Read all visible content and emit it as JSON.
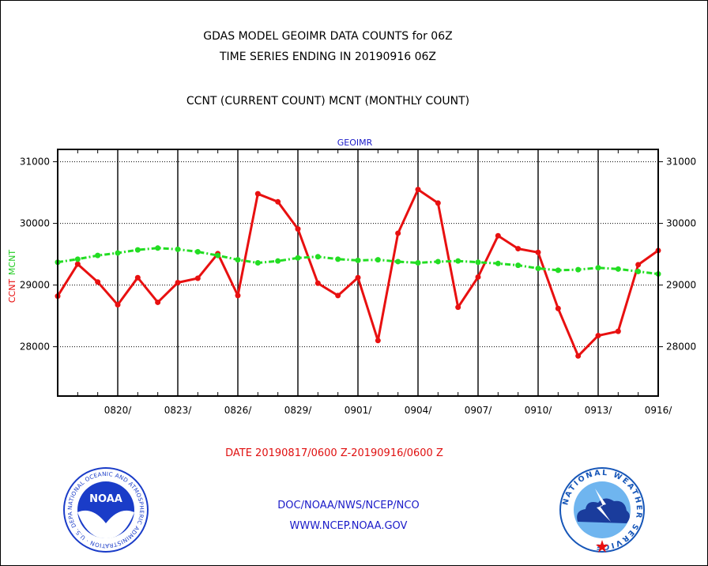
{
  "header": {
    "line1": "GDAS MODEL GEOIMR DATA COUNTS for 06Z",
    "line2": "TIME SERIES ENDING IN 20190916 06Z",
    "line3": "CCNT (CURRENT COUNT) MCNT (MONTHLY COUNT)"
  },
  "footer": {
    "date_range": "DATE 20190817/0600 Z-20190916/0600 Z",
    "org": "DOC/NOAA/NWS/NCEP/NCO",
    "url": "WWW.NCEP.NOAA.GOV"
  },
  "logos": {
    "noaa_text": "NOAA",
    "noaa_ring": "NATIONAL OCEANIC AND ATMOSPHERIC ADMINISTRATION · U.S. DEPARTMENT OF COMMERCE ·",
    "nws_ring": "NATIONAL WEATHER SERVICE"
  },
  "colors": {
    "ccnt": "#e81010",
    "mcnt": "#22dd22",
    "label_blue": "#1a1ac8",
    "noaa_blue": "#1a3cc8",
    "nws_blue": "#1656b8"
  },
  "chart_data": {
    "type": "line",
    "panel_title": "GEOIMR",
    "ylabel_left": [
      "CCNT",
      "MCNT"
    ],
    "ylim": [
      27200,
      31200
    ],
    "yticks": [
      28000,
      29000,
      30000,
      31000
    ],
    "x_dates": [
      "0817",
      "0818",
      "0819",
      "0820",
      "0821",
      "0822",
      "0823",
      "0824",
      "0825",
      "0826",
      "0827",
      "0828",
      "0829",
      "0830",
      "0831",
      "0901",
      "0902",
      "0903",
      "0904",
      "0905",
      "0906",
      "0907",
      "0908",
      "0909",
      "0910",
      "0911",
      "0912",
      "0913",
      "0914",
      "0915",
      "0916"
    ],
    "xtick_labels": [
      {
        "date": "0820",
        "label": "0820/"
      },
      {
        "date": "0823",
        "label": "0823/"
      },
      {
        "date": "0826",
        "label": "0826/"
      },
      {
        "date": "0829",
        "label": "0829/"
      },
      {
        "date": "0901",
        "label": "0901/"
      },
      {
        "date": "0904",
        "label": "0904/"
      },
      {
        "date": "0907",
        "label": "0907/"
      },
      {
        "date": "0910",
        "label": "0910/"
      },
      {
        "date": "0913",
        "label": "0913/"
      },
      {
        "date": "0916",
        "label": "0916/"
      }
    ],
    "grid": true,
    "series": [
      {
        "name": "CCNT",
        "style": "solid",
        "values": [
          28820,
          29340,
          29050,
          28680,
          29120,
          28720,
          29040,
          29110,
          29510,
          28830,
          30480,
          30350,
          29910,
          29030,
          28830,
          29120,
          28100,
          29840,
          30550,
          30330,
          28640,
          29130,
          29800,
          29590,
          29530,
          28620,
          27850,
          28180,
          28250,
          29330,
          29560
        ]
      },
      {
        "name": "MCNT",
        "style": "dash-dot",
        "values": [
          29370,
          29420,
          29480,
          29520,
          29570,
          29600,
          29580,
          29540,
          29480,
          29410,
          29360,
          29390,
          29440,
          29460,
          29420,
          29400,
          29410,
          29380,
          29360,
          29380,
          29390,
          29370,
          29350,
          29320,
          29270,
          29240,
          29250,
          29280,
          29260,
          29220,
          29180
        ]
      }
    ]
  }
}
